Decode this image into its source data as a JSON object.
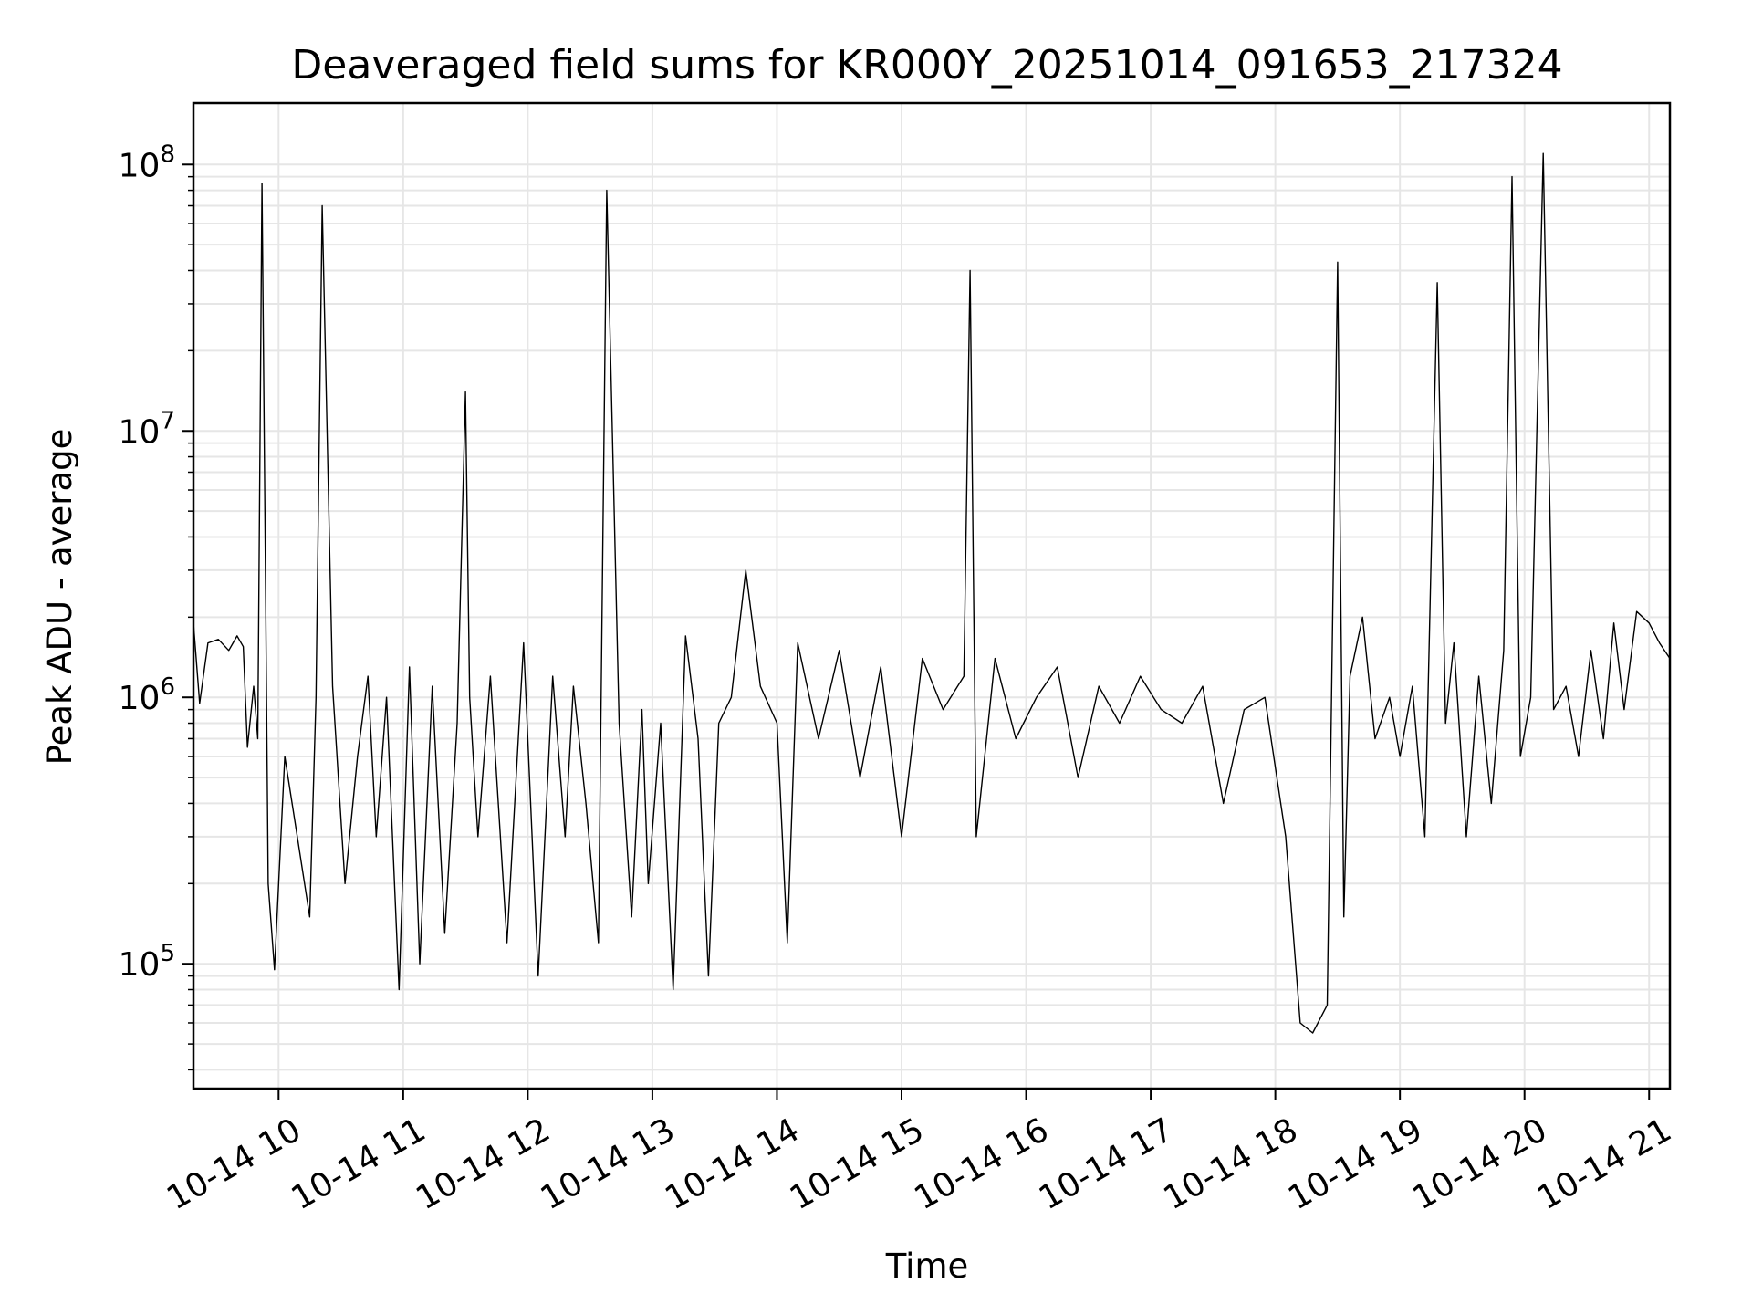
{
  "chart_data": {
    "type": "line",
    "title": "Deaveraged field sums for KR000Y_20251014_091653_217324",
    "xlabel": "Time",
    "ylabel": "Peak ADU - average",
    "yscale": "log",
    "grid": true,
    "legend": "none",
    "line_color": "#000000",
    "xlim": [
      "2025-10-14 09:19",
      "2025-10-14 21:10"
    ],
    "ylim": [
      34000,
      170000000
    ],
    "x_ticks": [
      {
        "value": "2025-10-14 10:00",
        "label": "10-14 10"
      },
      {
        "value": "2025-10-14 11:00",
        "label": "10-14 11"
      },
      {
        "value": "2025-10-14 12:00",
        "label": "10-14 12"
      },
      {
        "value": "2025-10-14 13:00",
        "label": "10-14 13"
      },
      {
        "value": "2025-10-14 14:00",
        "label": "10-14 14"
      },
      {
        "value": "2025-10-14 15:00",
        "label": "10-14 15"
      },
      {
        "value": "2025-10-14 16:00",
        "label": "10-14 16"
      },
      {
        "value": "2025-10-14 17:00",
        "label": "10-14 17"
      },
      {
        "value": "2025-10-14 18:00",
        "label": "10-14 18"
      },
      {
        "value": "2025-10-14 19:00",
        "label": "10-14 19"
      },
      {
        "value": "2025-10-14 20:00",
        "label": "10-14 20"
      },
      {
        "value": "2025-10-14 21:00",
        "label": "10-14 21"
      }
    ],
    "y_ticks": [
      {
        "value": 100000,
        "base": "10",
        "exp": "5"
      },
      {
        "value": 1000000,
        "base": "10",
        "exp": "6"
      },
      {
        "value": 10000000,
        "base": "10",
        "exp": "7"
      },
      {
        "value": 100000000,
        "base": "10",
        "exp": "8"
      }
    ],
    "series": [
      {
        "x": [
          "2025-10-14 09:19",
          "2025-10-14 09:22",
          "2025-10-14 09:26",
          "2025-10-14 09:31",
          "2025-10-14 09:36",
          "2025-10-14 09:40",
          "2025-10-14 09:43",
          "2025-10-14 09:45",
          "2025-10-14 09:48",
          "2025-10-14 09:50",
          "2025-10-14 09:52",
          "2025-10-14 09:55",
          "2025-10-14 09:58",
          "2025-10-14 10:03",
          "2025-10-14 10:09",
          "2025-10-14 10:15",
          "2025-10-14 10:18",
          "2025-10-14 10:21",
          "2025-10-14 10:26",
          "2025-10-14 10:32",
          "2025-10-14 10:38",
          "2025-10-14 10:43",
          "2025-10-14 10:47",
          "2025-10-14 10:52",
          "2025-10-14 10:58",
          "2025-10-14 11:03",
          "2025-10-14 11:08",
          "2025-10-14 11:14",
          "2025-10-14 11:20",
          "2025-10-14 11:26",
          "2025-10-14 11:30",
          "2025-10-14 11:32",
          "2025-10-14 11:36",
          "2025-10-14 11:42",
          "2025-10-14 11:50",
          "2025-10-14 11:58",
          "2025-10-14 12:05",
          "2025-10-14 12:12",
          "2025-10-14 12:18",
          "2025-10-14 12:22",
          "2025-10-14 12:28",
          "2025-10-14 12:34",
          "2025-10-14 12:38",
          "2025-10-14 12:44",
          "2025-10-14 12:50",
          "2025-10-14 12:55",
          "2025-10-14 12:58",
          "2025-10-14 13:04",
          "2025-10-14 13:10",
          "2025-10-14 13:16",
          "2025-10-14 13:22",
          "2025-10-14 13:27",
          "2025-10-14 13:32",
          "2025-10-14 13:38",
          "2025-10-14 13:45",
          "2025-10-14 13:52",
          "2025-10-14 14:00",
          "2025-10-14 14:05",
          "2025-10-14 14:10",
          "2025-10-14 14:20",
          "2025-10-14 14:30",
          "2025-10-14 14:40",
          "2025-10-14 14:50",
          "2025-10-14 15:00",
          "2025-10-14 15:10",
          "2025-10-14 15:20",
          "2025-10-14 15:30",
          "2025-10-14 15:33",
          "2025-10-14 15:36",
          "2025-10-14 15:45",
          "2025-10-14 15:55",
          "2025-10-14 16:05",
          "2025-10-14 16:15",
          "2025-10-14 16:25",
          "2025-10-14 16:35",
          "2025-10-14 16:45",
          "2025-10-14 16:55",
          "2025-10-14 17:05",
          "2025-10-14 17:15",
          "2025-10-14 17:25",
          "2025-10-14 17:35",
          "2025-10-14 17:45",
          "2025-10-14 17:55",
          "2025-10-14 18:05",
          "2025-10-14 18:12",
          "2025-10-14 18:18",
          "2025-10-14 18:25",
          "2025-10-14 18:30",
          "2025-10-14 18:33",
          "2025-10-14 18:36",
          "2025-10-14 18:42",
          "2025-10-14 18:48",
          "2025-10-14 18:55",
          "2025-10-14 19:00",
          "2025-10-14 19:06",
          "2025-10-14 19:12",
          "2025-10-14 19:18",
          "2025-10-14 19:22",
          "2025-10-14 19:26",
          "2025-10-14 19:32",
          "2025-10-14 19:38",
          "2025-10-14 19:44",
          "2025-10-14 19:50",
          "2025-10-14 19:54",
          "2025-10-14 19:58",
          "2025-10-14 20:03",
          "2025-10-14 20:09",
          "2025-10-14 20:14",
          "2025-10-14 20:20",
          "2025-10-14 20:26",
          "2025-10-14 20:32",
          "2025-10-14 20:38",
          "2025-10-14 20:43",
          "2025-10-14 20:48",
          "2025-10-14 20:54",
          "2025-10-14 21:00",
          "2025-10-14 21:05",
          "2025-10-14 21:10"
        ],
        "y": [
          1900000,
          950000,
          1600000,
          1650000,
          1500000,
          1700000,
          1550000,
          650000,
          1100000,
          700000,
          85000000,
          200000,
          95000,
          600000,
          300000,
          150000,
          1000000,
          70000000,
          1100000,
          200000,
          600000,
          1200000,
          300000,
          1000000,
          80000,
          1300000,
          100000,
          1100000,
          130000,
          800000,
          14000000,
          1000000,
          300000,
          1200000,
          120000,
          1600000,
          90000,
          1200000,
          300000,
          1100000,
          400000,
          120000,
          80000000,
          800000,
          150000,
          900000,
          200000,
          800000,
          80000,
          1700000,
          700000,
          90000,
          800000,
          1000000,
          3000000,
          1100000,
          800000,
          120000,
          1600000,
          700000,
          1500000,
          500000,
          1300000,
          300000,
          1400000,
          900000,
          1200000,
          40000000,
          300000,
          1400000,
          700000,
          1000000,
          1300000,
          500000,
          1100000,
          800000,
          1200000,
          900000,
          800000,
          1100000,
          400000,
          900000,
          1000000,
          300000,
          60000,
          55000,
          70000,
          43000000,
          150000,
          1200000,
          2000000,
          700000,
          1000000,
          600000,
          1100000,
          300000,
          36000000,
          800000,
          1600000,
          300000,
          1200000,
          400000,
          1500000,
          90000000,
          600000,
          1000000,
          110000000,
          900000,
          1100000,
          600000,
          1500000,
          700000,
          1900000,
          900000,
          2100000,
          1900000,
          1600000,
          1400000
        ]
      }
    ]
  }
}
